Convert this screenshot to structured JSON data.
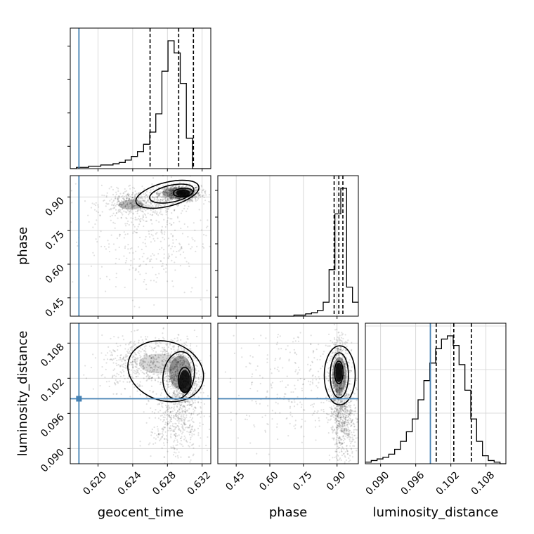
{
  "chart_data": {
    "type": "corner",
    "parameters": [
      "geocent_time",
      "phase",
      "luminosity_distance"
    ],
    "axis_labels": {
      "geocent_time": "geocent_time",
      "phase": "phase",
      "luminosity_distance": "luminosity_distance"
    },
    "ranges": {
      "geocent_time": [
        0.6168,
        0.633
      ],
      "phase": [
        0.368,
        0.995
      ],
      "luminosity_distance": [
        0.0874,
        0.1114
      ]
    },
    "ticks": {
      "geocent_time": {
        "values": [
          0.62,
          0.624,
          0.628,
          0.632
        ],
        "labels": [
          "0.620",
          "0.624",
          "0.628",
          "0.632"
        ]
      },
      "phase": {
        "values": [
          0.45,
          0.6,
          0.75,
          0.9
        ],
        "labels": [
          "0.45",
          "0.60",
          "0.75",
          "0.90"
        ]
      },
      "luminosity_distance": {
        "values": [
          0.09,
          0.096,
          0.102,
          0.108
        ],
        "labels": [
          "0.090",
          "0.096",
          "0.102",
          "0.108"
        ]
      }
    },
    "truths": {
      "geocent_time": 0.6178,
      "phase": null,
      "luminosity_distance": 0.0985
    },
    "truth_color": "#4682b4",
    "quantiles": {
      "geocent_time": [
        0.626,
        0.6293,
        0.631
      ],
      "phase": [
        0.887,
        0.908,
        0.926
      ],
      "luminosity_distance": [
        0.0995,
        0.1025,
        0.1055
      ]
    },
    "histograms": {
      "geocent_time": [
        0,
        1,
        1,
        2,
        2,
        3,
        3,
        4,
        5,
        7,
        10,
        14,
        20,
        30,
        45,
        80,
        105,
        95,
        70,
        25,
        0,
        0,
        0
      ],
      "phase": [
        0,
        0,
        0,
        0,
        0,
        0,
        0,
        0,
        0,
        0,
        0,
        0,
        0,
        1,
        1,
        2,
        3,
        5,
        12,
        40,
        88,
        110,
        25,
        12
      ],
      "luminosity_distance": [
        1,
        2,
        3,
        4,
        6,
        9,
        14,
        20,
        28,
        40,
        52,
        63,
        72,
        78,
        80,
        74,
        62,
        46,
        28,
        14,
        5,
        2,
        1,
        0
      ]
    },
    "contour_levels": 4,
    "grid": true
  }
}
